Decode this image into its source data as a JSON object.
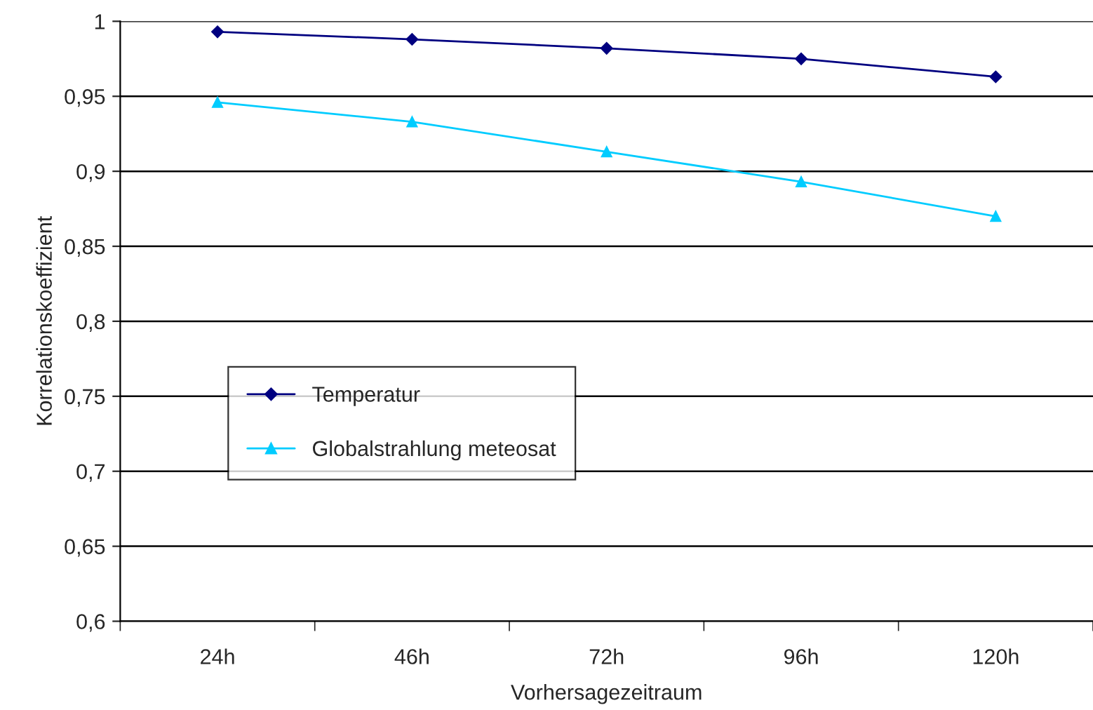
{
  "chart_data": {
    "type": "line",
    "xlabel": "Vorhersagezeitraum",
    "ylabel": "Korrelationskoeffizient",
    "categories": [
      "24h",
      "46h",
      "72h",
      "96h",
      "120h"
    ],
    "series": [
      {
        "name": "Temperatur",
        "color": "#000080",
        "marker": "diamond",
        "values": [
          0.993,
          0.988,
          0.982,
          0.975,
          0.963
        ]
      },
      {
        "name": "Globalstrahlung meteosat",
        "color": "#00ccff",
        "marker": "triangle",
        "values": [
          0.946,
          0.933,
          0.913,
          0.893,
          0.87
        ]
      }
    ],
    "ylim": [
      0.6,
      1
    ],
    "yticks": [
      {
        "value": 0.6,
        "label": "0,6"
      },
      {
        "value": 0.65,
        "label": "0,65"
      },
      {
        "value": 0.7,
        "label": "0,7"
      },
      {
        "value": 0.75,
        "label": "0,75"
      },
      {
        "value": 0.8,
        "label": "0,8"
      },
      {
        "value": 0.85,
        "label": "0,85"
      },
      {
        "value": 0.9,
        "label": "0,9"
      },
      {
        "value": 0.95,
        "label": "0,95"
      },
      {
        "value": 1,
        "label": "1"
      }
    ],
    "grid": "y",
    "legend": "left",
    "line_style": "solid"
  }
}
